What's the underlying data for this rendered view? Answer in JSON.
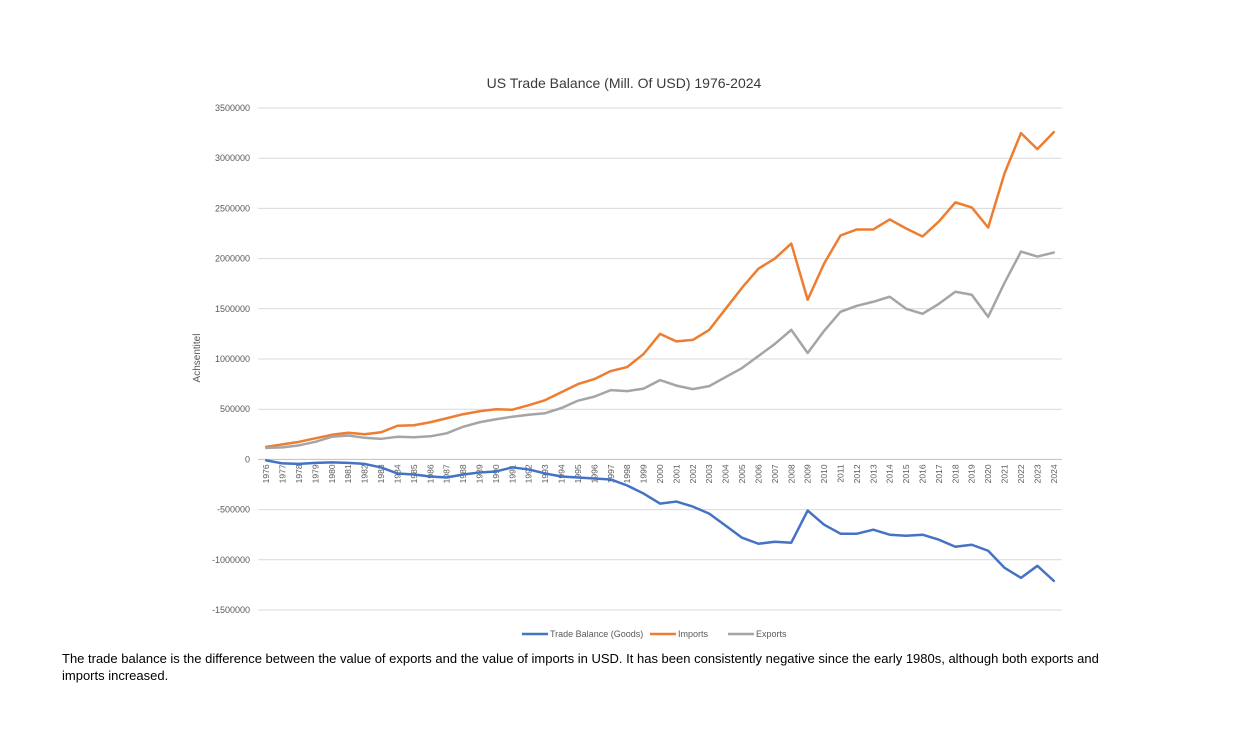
{
  "chart_data": {
    "type": "line",
    "title": "US Trade Balance (Mill. Of USD) 1976-2024",
    "xlabel": "",
    "ylabel": "Achsentitel",
    "ylim": [
      -1500000,
      3500000
    ],
    "yticks": [
      3500000,
      3000000,
      2500000,
      2000000,
      1500000,
      1000000,
      500000,
      0,
      -500000,
      -1000000,
      -1500000
    ],
    "grid": true,
    "legend_position": "bottom",
    "categories": [
      "1976",
      "1977",
      "1978",
      "1979",
      "1980",
      "1981",
      "1982",
      "1983",
      "1984",
      "1985",
      "1986",
      "1987",
      "1988",
      "1989",
      "1990",
      "1991",
      "1992",
      "1993",
      "1994",
      "1995",
      "1996",
      "1997",
      "1998",
      "1999",
      "2000",
      "2001",
      "2002",
      "2003",
      "2004",
      "2005",
      "2006",
      "2007",
      "2008",
      "2009",
      "2010",
      "2011",
      "2012",
      "2013",
      "2014",
      "2015",
      "2016",
      "2017",
      "2018",
      "2019",
      "2020",
      "2021",
      "2022",
      "2023",
      "2024"
    ],
    "series": [
      {
        "name": "Trade Balance (Goods)",
        "color": "#4472C4",
        "values": [
          -10000,
          -40000,
          -45000,
          -35000,
          -30000,
          -35000,
          -45000,
          -80000,
          -140000,
          -150000,
          -170000,
          -180000,
          -150000,
          -130000,
          -120000,
          -80000,
          -100000,
          -140000,
          -170000,
          -180000,
          -190000,
          -200000,
          -260000,
          -340000,
          -440000,
          -420000,
          -470000,
          -540000,
          -660000,
          -780000,
          -840000,
          -820000,
          -830000,
          -510000,
          -650000,
          -740000,
          -740000,
          -700000,
          -750000,
          -760000,
          -750000,
          -800000,
          -870000,
          -850000,
          -910000,
          -1080000,
          -1180000,
          -1060000,
          -1210000
        ]
      },
      {
        "name": "Imports",
        "color": "#ED7D31",
        "values": [
          125000,
          150000,
          175000,
          210000,
          245000,
          265000,
          250000,
          270000,
          335000,
          340000,
          370000,
          410000,
          450000,
          480000,
          500000,
          495000,
          540000,
          590000,
          670000,
          750000,
          800000,
          880000,
          920000,
          1050000,
          1250000,
          1175000,
          1190000,
          1290000,
          1500000,
          1710000,
          1900000,
          2000000,
          2150000,
          1590000,
          1950000,
          2230000,
          2290000,
          2290000,
          2390000,
          2300000,
          2220000,
          2370000,
          2560000,
          2510000,
          2310000,
          2850000,
          3250000,
          3090000,
          3260000
        ]
      },
      {
        "name": "Exports",
        "color": "#A5A5A5",
        "values": [
          115000,
          120000,
          140000,
          175000,
          225000,
          238000,
          215000,
          205000,
          225000,
          220000,
          230000,
          260000,
          325000,
          370000,
          400000,
          425000,
          445000,
          460000,
          512000,
          585000,
          625000,
          690000,
          680000,
          705000,
          790000,
          735000,
          700000,
          730000,
          820000,
          910000,
          1030000,
          1150000,
          1290000,
          1060000,
          1280000,
          1470000,
          1530000,
          1570000,
          1620000,
          1500000,
          1450000,
          1550000,
          1670000,
          1640000,
          1420000,
          1760000,
          2070000,
          2020000,
          2060000
        ]
      }
    ]
  },
  "caption": "The trade balance is the difference between the value of exports and the value of imports in USD. It has been consistently negative since the early 1980s, although both exports and imports increased."
}
